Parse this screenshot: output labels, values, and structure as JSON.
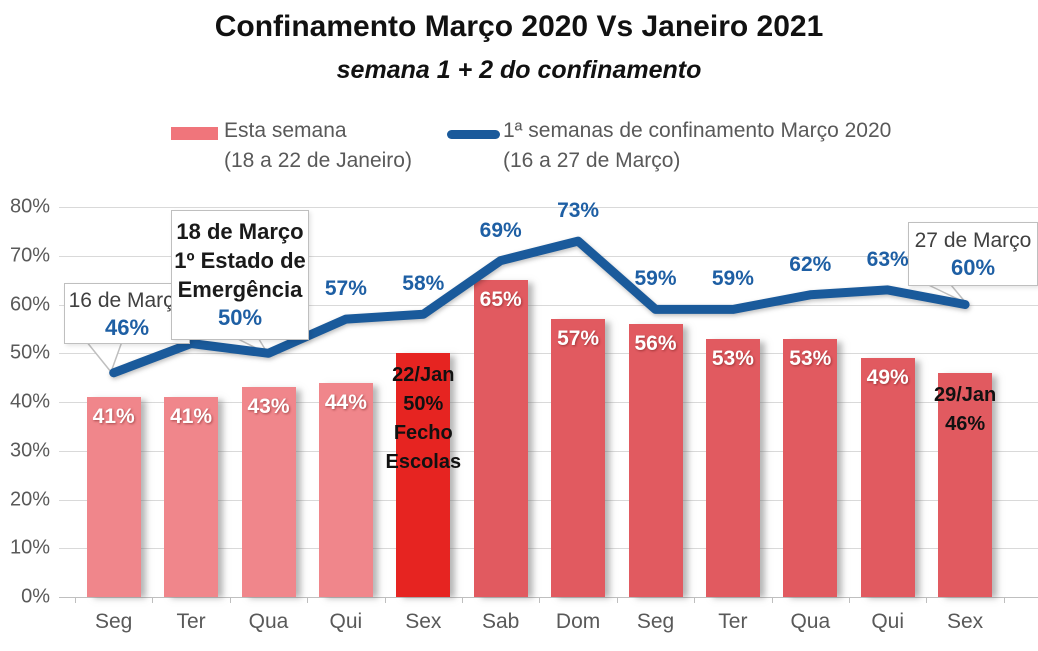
{
  "title": "Confinamento Março 2020 Vs Janeiro 2021",
  "subtitle": "semana 1 + 2 do confinamento",
  "legend": {
    "bar_label": "Esta semana",
    "bar_sublabel": "(18 a 22 de Janeiro)",
    "line_label": "1ª semanas de confinamento Março 2020",
    "line_sublabel": "(16 a 27 de Março)"
  },
  "colors": {
    "bar_light": "#F0868B",
    "bar_medium": "#E15A60",
    "bar_accent": "#E62421",
    "legend_bar_swatch": "#F0757B",
    "line": "#1A5A9B",
    "line_label_text": "#1E5FA4",
    "axis_text": "#595959",
    "gridline": "#D9D9D9"
  },
  "chart_data": {
    "type": "combo-bar-line",
    "categories": [
      "Seg",
      "Ter",
      "Qua",
      "Qui",
      "Sex",
      "Sab",
      "Dom",
      "Seg",
      "Ter",
      "Qua",
      "Qui",
      "Sex"
    ],
    "y_axis": {
      "min": 0,
      "max": 80,
      "tick_step": 10,
      "grid": true,
      "tick_labels": [
        "0%",
        "10%",
        "20%",
        "30%",
        "40%",
        "50%",
        "60%",
        "70%",
        "80%"
      ]
    },
    "bar_series": {
      "name": "Esta semana (18 a 22 de Janeiro)",
      "values": [
        41,
        41,
        43,
        44,
        50,
        65,
        57,
        56,
        53,
        53,
        49,
        46
      ],
      "bars": [
        {
          "category": "Seg",
          "value": 41,
          "label_lines": [
            "41%"
          ],
          "style": "light",
          "label_style": "white"
        },
        {
          "category": "Ter",
          "value": 41,
          "label_lines": [
            "41%"
          ],
          "style": "light",
          "label_style": "white"
        },
        {
          "category": "Qua",
          "value": 43,
          "label_lines": [
            "43%"
          ],
          "style": "light",
          "label_style": "white"
        },
        {
          "category": "Qui",
          "value": 44,
          "label_lines": [
            "44%"
          ],
          "style": "light",
          "label_style": "white"
        },
        {
          "category": "Sex",
          "value": 50,
          "label_lines": [
            "22/Jan",
            "50%",
            "Fecho",
            "Escolas"
          ],
          "style": "accent",
          "label_style": "dark"
        },
        {
          "category": "Sab",
          "value": 65,
          "label_lines": [
            "65%"
          ],
          "style": "medium",
          "label_style": "white"
        },
        {
          "category": "Dom",
          "value": 57,
          "label_lines": [
            "57%"
          ],
          "style": "medium",
          "label_style": "white"
        },
        {
          "category": "Seg",
          "value": 56,
          "label_lines": [
            "56%"
          ],
          "style": "medium",
          "label_style": "white"
        },
        {
          "category": "Ter",
          "value": 53,
          "label_lines": [
            "53%"
          ],
          "style": "medium",
          "label_style": "white"
        },
        {
          "category": "Qua",
          "value": 53,
          "label_lines": [
            "53%"
          ],
          "style": "medium",
          "label_style": "white"
        },
        {
          "category": "Qui",
          "value": 49,
          "label_lines": [
            "49%"
          ],
          "style": "medium",
          "label_style": "white"
        },
        {
          "category": "Sex",
          "value": 46,
          "label_lines": [
            "29/Jan",
            "46%"
          ],
          "style": "medium",
          "label_style": "dark"
        }
      ]
    },
    "line_series": {
      "name": "1ª semanas de confinamento Março 2020 (16 a 27 de Março)",
      "values": [
        46,
        52,
        50,
        57,
        58,
        69,
        73,
        59,
        59,
        62,
        63,
        60
      ],
      "point_labels": [
        null,
        null,
        null,
        "57%",
        "58%",
        "69%",
        "73%",
        "59%",
        "59%",
        "62%",
        "63%",
        null
      ]
    },
    "annotations": [
      {
        "title": "16 de Março",
        "value": "46%",
        "target_index": 0
      },
      {
        "title": "18 de Março",
        "line2": "1º Estado de",
        "line3": "Emergência",
        "value": "50%",
        "target_index": 2
      },
      {
        "title": "27 de Março",
        "value": "60%",
        "target_index": 11
      }
    ]
  }
}
